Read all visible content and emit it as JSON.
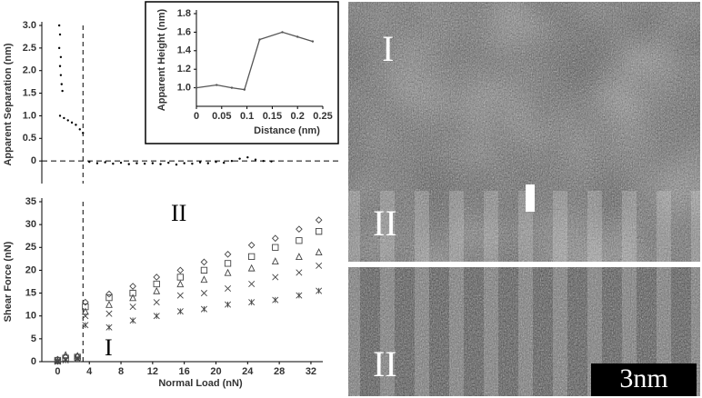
{
  "chart_data": [
    {
      "type": "scatter",
      "ylabel": "Apparent Separation (nm)",
      "xlim": [
        -2,
        33.5
      ],
      "ylim": [
        -0.5,
        3.0
      ],
      "yticks": [
        {
          "value": 3,
          "label": "3.0"
        },
        {
          "value": 2.5,
          "label": "2.5"
        },
        {
          "value": 2,
          "label": "2.0"
        },
        {
          "value": 1.5,
          "label": "1.5"
        },
        {
          "value": 1,
          "label": "1.0"
        },
        {
          "value": 0.5,
          "label": "0.5"
        },
        0
      ],
      "vline": 3.2,
      "hline": 0,
      "series": [
        {
          "marker": "dot",
          "color": "#000000",
          "x": [
            0.2,
            0.3,
            0.2,
            0.4,
            0.3,
            0.4,
            0.5,
            0.6,
            0.3,
            0.8,
            1.3,
            1.8,
            2.3,
            2.8,
            3.2,
            4,
            5,
            6,
            7,
            8,
            9,
            10,
            11,
            12,
            13,
            14,
            15,
            16,
            17,
            18,
            19,
            20,
            21,
            22,
            23,
            24,
            25,
            26,
            27
          ],
          "values": [
            3.0,
            2.8,
            2.5,
            2.3,
            2.1,
            1.9,
            1.7,
            1.55,
            1.0,
            0.95,
            0.9,
            0.85,
            0.8,
            0.7,
            0.62,
            -0.02,
            -0.05,
            -0.03,
            -0.06,
            -0.04,
            -0.07,
            -0.05,
            -0.06,
            -0.05,
            -0.07,
            -0.04,
            -0.08,
            -0.05,
            -0.06,
            -0.03,
            -0.05,
            -0.02,
            -0.04,
            0.0,
            0.05,
            0.08,
            0.03,
            0.0,
            -0.01
          ]
        }
      ]
    },
    {
      "type": "line",
      "xlabel": "Distance (nm)",
      "ylabel": "Apparent Height (nm)",
      "xlim": [
        0,
        0.25
      ],
      "ylim": [
        0.8,
        1.8
      ],
      "xticks": [
        0,
        0.05,
        0.1,
        0.15,
        0.2,
        0.25
      ],
      "yticks": [
        {
          "value": 1,
          "label": "1.0"
        },
        1.2,
        1.4,
        1.6,
        1.8
      ],
      "series": [
        {
          "color": "#555555",
          "x": [
            0,
            0.04,
            0.07,
            0.095,
            0.125,
            0.17,
            0.2,
            0.23
          ],
          "values": [
            1.0,
            1.03,
            1.0,
            0.98,
            1.52,
            1.6,
            1.55,
            1.5
          ]
        }
      ]
    },
    {
      "type": "scatter",
      "xlabel": "Normal  Load  (nN)",
      "ylabel": "Shear Force (nN)",
      "xlim": [
        -2,
        33.5
      ],
      "ylim": [
        0,
        35
      ],
      "xticks": [
        0,
        4,
        8,
        12,
        16,
        20,
        24,
        28,
        32
      ],
      "yticks": [
        0,
        5,
        10,
        15,
        20,
        25,
        30,
        35
      ],
      "vline": 3.2,
      "annotations": [
        "I",
        "II"
      ],
      "x": [
        0,
        1,
        2.5,
        3.5,
        6.5,
        9.5,
        12.5,
        15.5,
        18.5,
        21.5,
        24.5,
        27.5,
        30.5,
        33
      ],
      "series": [
        {
          "marker": "diamond",
          "color": "#444444",
          "values": [
            0.5,
            1,
            1.2,
            13,
            14.8,
            16.5,
            18.5,
            20,
            21.8,
            23.5,
            25.5,
            27,
            29,
            31
          ]
        },
        {
          "marker": "square",
          "color": "#444444",
          "values": [
            0.3,
            0.8,
            1,
            12,
            14,
            15,
            17,
            18.5,
            20,
            21.5,
            23,
            25,
            26.5,
            28.5
          ]
        },
        {
          "marker": "triangle",
          "color": "#444444",
          "values": [
            0.2,
            1.5,
            1.3,
            11,
            12.5,
            14,
            15.5,
            17,
            18,
            19.5,
            20.5,
            22,
            23,
            24
          ]
        },
        {
          "marker": "x",
          "color": "#444444",
          "values": [
            0.1,
            0.5,
            0.8,
            10,
            10.5,
            12,
            13,
            14.5,
            15,
            16,
            17,
            18.5,
            19.5,
            21
          ]
        },
        {
          "marker": "star",
          "color": "#444444",
          "values": [
            0,
            0.3,
            0.6,
            8,
            7.5,
            9,
            10,
            11,
            11.5,
            12.5,
            13,
            13.5,
            14.5,
            15.5
          ]
        }
      ]
    }
  ],
  "images": {
    "top_labels": [
      "I",
      "II"
    ],
    "bottom_label": "II",
    "scale_bar": "3nm"
  }
}
